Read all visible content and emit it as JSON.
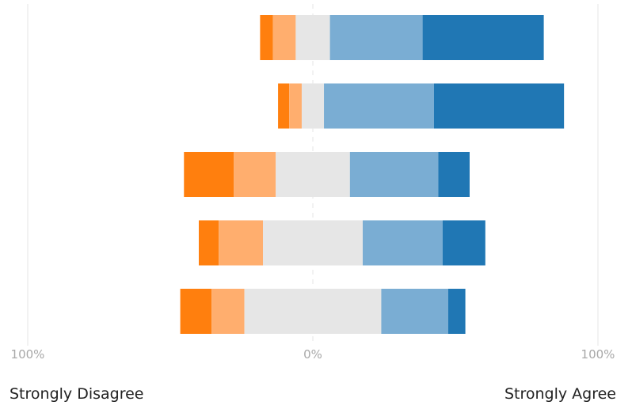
{
  "chart_data": {
    "type": "bar",
    "orientation": "horizontal",
    "stacked": "diverging",
    "title": "",
    "xlabel": "",
    "ylabel": "",
    "xlim": [
      -100,
      100
    ],
    "x_ticks": [
      {
        "value": -100,
        "label": "100%"
      },
      {
        "value": 0,
        "label": "0%"
      },
      {
        "value": 100,
        "label": "100%"
      }
    ],
    "grid": true,
    "legend": "none",
    "scale_labels": {
      "left": "Strongly Disagree",
      "right": "Strongly Agree"
    },
    "levels": [
      "strongly_disagree",
      "disagree",
      "neutral",
      "agree",
      "strongly_agree"
    ],
    "colors": [
      "#ff7f0e",
      "#ffae6e",
      "#e6e6e6",
      "#7aadd3",
      "#2077b4"
    ],
    "rows": [
      {
        "values": [
          4.5,
          8,
          12,
          32.5,
          42.5
        ]
      },
      {
        "values": [
          3.9,
          4.4,
          7.8,
          38.6,
          45.6
        ]
      },
      {
        "values": [
          17.5,
          14.7,
          26,
          31,
          11
        ]
      },
      {
        "values": [
          7,
          15.5,
          35,
          28,
          15
        ]
      },
      {
        "values": [
          11,
          11.5,
          48,
          23.5,
          6
        ]
      }
    ]
  }
}
